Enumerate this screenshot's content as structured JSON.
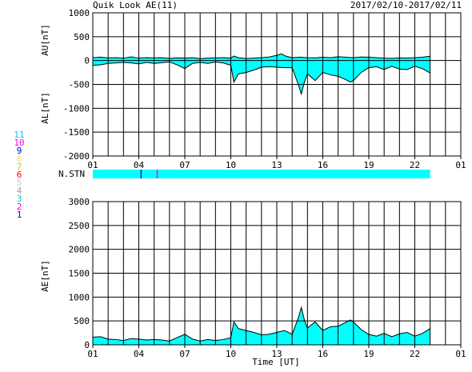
{
  "header": {
    "title": "Quik Look AE(11)",
    "date_range": "2017/02/10-2017/02/11"
  },
  "colors": {
    "fill": "#00ffff",
    "line": "#000000",
    "grid": "#000000",
    "background": "#ffffff"
  },
  "station_legend": {
    "items": [
      {
        "num": "11",
        "color": "#00c8ff"
      },
      {
        "num": "10",
        "color": "#ff00ff"
      },
      {
        "num": "9",
        "color": "#0000c8"
      },
      {
        "num": "8",
        "color": "#ffe066"
      },
      {
        "num": "7",
        "color": "#c8c800"
      },
      {
        "num": "6",
        "color": "#ff0000"
      },
      {
        "num": "5",
        "color": "#c8c8c8"
      },
      {
        "num": "4",
        "color": "#a0a0a0"
      },
      {
        "num": "3",
        "color": "#00c8c8"
      },
      {
        "num": "2",
        "color": "#ff00c8"
      },
      {
        "num": "1",
        "color": "#0000ff"
      }
    ]
  },
  "chart_data": [
    {
      "type": "area",
      "name": "AU/AL",
      "ylabel_upper": "AU[nT]",
      "ylabel_lower": "AL[nT]",
      "ylim": [
        -2000,
        1000
      ],
      "yticks": [
        1000,
        500,
        0,
        -500,
        -1000,
        -1500,
        -2000
      ],
      "xlim": [
        1,
        25
      ],
      "xtick_labels": [
        "01",
        "04",
        "07",
        "10",
        "13",
        "16",
        "19",
        "22",
        "01"
      ],
      "xtick_hours": [
        1,
        4,
        7,
        10,
        13,
        16,
        19,
        22,
        25
      ],
      "au": {
        "x": [
          1,
          1.5,
          2,
          2.5,
          3,
          3.5,
          4,
          4.5,
          5,
          5.5,
          6,
          6.5,
          7,
          7.5,
          8,
          8.5,
          9,
          9.5,
          10,
          10.2,
          10.5,
          11,
          11.5,
          12,
          12.5,
          13,
          13.3,
          13.6,
          14,
          14.5,
          15,
          15.5,
          16,
          16.5,
          17,
          17.5,
          18,
          18.5,
          19,
          19.5,
          20,
          20.5,
          21,
          21.5,
          22,
          22.5,
          23
        ],
        "values": [
          60,
          70,
          55,
          60,
          50,
          75,
          50,
          60,
          55,
          60,
          45,
          55,
          50,
          60,
          40,
          50,
          55,
          60,
          50,
          95,
          60,
          40,
          50,
          60,
          75,
          110,
          140,
          90,
          60,
          70,
          60,
          55,
          70,
          60,
          80,
          70,
          60,
          75,
          70,
          60,
          50,
          45,
          55,
          50,
          60,
          70,
          90
        ]
      },
      "al": {
        "x": [
          1,
          1.5,
          2,
          2.5,
          3,
          3.5,
          4,
          4.5,
          5,
          5.5,
          6,
          6.5,
          7,
          7.5,
          8,
          8.5,
          9,
          9.5,
          10,
          10.2,
          10.5,
          11,
          11.5,
          12,
          12.5,
          13,
          13.5,
          14,
          14.4,
          14.6,
          14.8,
          15,
          15.5,
          16,
          16.5,
          17,
          17.5,
          17.8,
          18,
          18.5,
          19,
          19.5,
          20,
          20.5,
          21,
          21.5,
          22,
          22.5,
          23
        ],
        "values": [
          -100,
          -90,
          -60,
          -50,
          -40,
          -50,
          -70,
          -40,
          -60,
          -45,
          -30,
          -90,
          -170,
          -60,
          -40,
          -60,
          -30,
          -50,
          -100,
          -450,
          -280,
          -250,
          -200,
          -140,
          -130,
          -140,
          -150,
          -150,
          -500,
          -700,
          -450,
          -280,
          -420,
          -250,
          -300,
          -330,
          -400,
          -450,
          -420,
          -250,
          -150,
          -130,
          -190,
          -120,
          -180,
          -190,
          -120,
          -170,
          -260
        ]
      }
    },
    {
      "type": "bar",
      "name": "N.STN",
      "label": "N.STN",
      "xlim": [
        1,
        25
      ],
      "coverage": [
        1,
        23
      ],
      "markers": [
        {
          "hour": 4.15,
          "color": "#0000ff"
        },
        {
          "hour": 5.2,
          "color": "#ff00ff"
        }
      ]
    },
    {
      "type": "area",
      "name": "AE",
      "ylabel": "AE[nT]",
      "xlabel": "Time [UT]",
      "ylim": [
        0,
        3000
      ],
      "yticks": [
        3000,
        2500,
        2000,
        1500,
        1000,
        500,
        0
      ],
      "xlim": [
        1,
        25
      ],
      "xtick_labels": [
        "01",
        "04",
        "07",
        "10",
        "13",
        "16",
        "19",
        "22",
        "01"
      ],
      "xtick_hours": [
        1,
        4,
        7,
        10,
        13,
        16,
        19,
        22,
        25
      ],
      "x": [
        1,
        1.5,
        2,
        2.5,
        3,
        3.5,
        4,
        4.5,
        5,
        5.5,
        6,
        6.5,
        7,
        7.5,
        8,
        8.5,
        9,
        9.5,
        10,
        10.2,
        10.5,
        11,
        11.5,
        12,
        12.5,
        13,
        13.5,
        14,
        14.4,
        14.6,
        14.8,
        15,
        15.5,
        16,
        16.5,
        17,
        17.5,
        17.8,
        18,
        18.5,
        19,
        19.5,
        20,
        20.5,
        21,
        21.5,
        22,
        22.5,
        23
      ],
      "values": [
        160,
        170,
        120,
        110,
        90,
        130,
        120,
        100,
        110,
        100,
        80,
        150,
        220,
        120,
        80,
        110,
        90,
        110,
        150,
        480,
        340,
        300,
        260,
        210,
        220,
        260,
        300,
        220,
        560,
        780,
        520,
        350,
        480,
        300,
        380,
        390,
        470,
        520,
        480,
        320,
        220,
        180,
        240,
        170,
        230,
        260,
        180,
        240,
        340
      ]
    }
  ]
}
